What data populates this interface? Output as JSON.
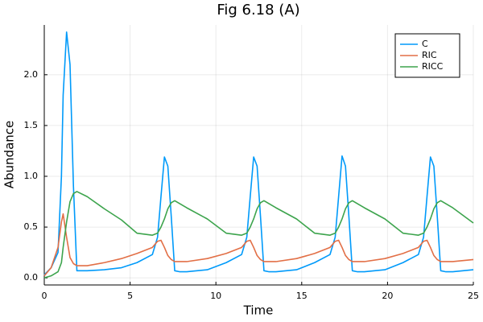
{
  "chart_data": {
    "type": "line",
    "title": "Fig 6.18 (A)",
    "x_label": "Time",
    "y_label": "Abundance",
    "x": [
      0,
      0.4,
      0.8,
      1.0,
      1.1,
      1.3,
      1.5,
      1.7,
      1.9,
      2.5,
      3.5,
      4.5,
      5.4,
      6.3,
      6.6,
      6.8,
      7.0,
      7.2,
      7.4,
      7.6,
      7.9,
      8.3,
      9.5,
      10.6,
      11.5,
      11.8,
      12.0,
      12.2,
      12.4,
      12.6,
      12.8,
      13.1,
      13.5,
      14.7,
      15.75,
      16.65,
      16.95,
      17.15,
      17.35,
      17.55,
      17.75,
      17.95,
      18.25,
      18.65,
      19.85,
      20.9,
      21.8,
      22.1,
      22.3,
      22.5,
      22.7,
      22.9,
      23.1,
      23.4,
      23.8,
      25
    ],
    "series": [
      {
        "name": "C",
        "color": "#009afa",
        "values": [
          0.03,
          0.1,
          0.25,
          1.0,
          1.8,
          2.42,
          2.1,
          0.9,
          0.07,
          0.07,
          0.08,
          0.1,
          0.15,
          0.23,
          0.4,
          0.8,
          1.19,
          1.1,
          0.6,
          0.07,
          0.06,
          0.06,
          0.08,
          0.15,
          0.23,
          0.4,
          0.8,
          1.19,
          1.1,
          0.6,
          0.07,
          0.06,
          0.06,
          0.08,
          0.15,
          0.23,
          0.4,
          0.8,
          1.2,
          1.1,
          0.6,
          0.07,
          0.06,
          0.06,
          0.08,
          0.15,
          0.23,
          0.4,
          0.8,
          1.19,
          1.1,
          0.6,
          0.07,
          0.06,
          0.06,
          0.08
        ]
      },
      {
        "name": "RIC",
        "color": "#e26f46",
        "values": [
          0.02,
          0.1,
          0.3,
          0.55,
          0.63,
          0.4,
          0.2,
          0.14,
          0.12,
          0.12,
          0.15,
          0.19,
          0.24,
          0.3,
          0.36,
          0.37,
          0.3,
          0.22,
          0.18,
          0.16,
          0.16,
          0.16,
          0.19,
          0.24,
          0.3,
          0.36,
          0.37,
          0.3,
          0.22,
          0.18,
          0.16,
          0.16,
          0.16,
          0.19,
          0.24,
          0.3,
          0.36,
          0.37,
          0.3,
          0.22,
          0.18,
          0.16,
          0.16,
          0.16,
          0.19,
          0.24,
          0.3,
          0.36,
          0.37,
          0.3,
          0.22,
          0.18,
          0.16,
          0.16,
          0.16,
          0.18
        ]
      },
      {
        "name": "RICC",
        "color": "#3da44d",
        "values": [
          0.0,
          0.02,
          0.06,
          0.15,
          0.3,
          0.55,
          0.75,
          0.83,
          0.85,
          0.8,
          0.68,
          0.57,
          0.44,
          0.42,
          0.44,
          0.5,
          0.58,
          0.68,
          0.74,
          0.76,
          0.73,
          0.69,
          0.58,
          0.44,
          0.42,
          0.44,
          0.5,
          0.58,
          0.68,
          0.74,
          0.76,
          0.73,
          0.69,
          0.58,
          0.44,
          0.42,
          0.44,
          0.5,
          0.58,
          0.68,
          0.74,
          0.76,
          0.73,
          0.69,
          0.58,
          0.44,
          0.42,
          0.44,
          0.5,
          0.58,
          0.68,
          0.74,
          0.76,
          0.73,
          0.69,
          0.54
        ]
      }
    ],
    "xlim": [
      0,
      25
    ],
    "xticks": [
      0,
      5,
      10,
      15,
      20,
      25
    ],
    "ylim": [
      -0.07,
      2.49
    ],
    "yticks": [
      {
        "value": 0,
        "label": "0.0"
      },
      {
        "value": 0.5,
        "label": "0.5"
      },
      {
        "value": 1,
        "label": "1.0"
      },
      {
        "value": 1.5,
        "label": "1.5"
      },
      {
        "value": 2,
        "label": "2.0"
      }
    ],
    "grid": true,
    "legend": "top-right"
  }
}
